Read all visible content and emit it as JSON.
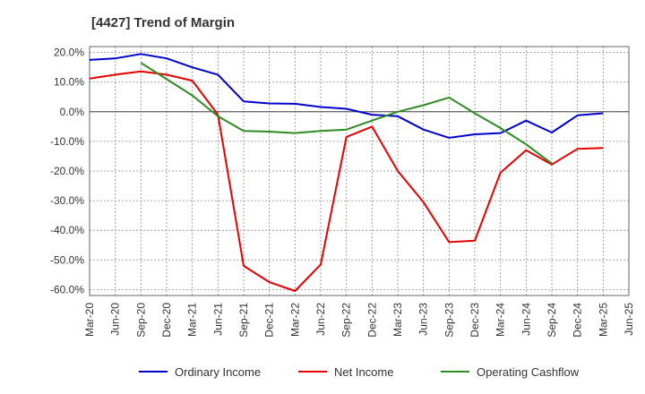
{
  "chart_data": {
    "type": "line",
    "title": "[4427]  Trend of Margin",
    "xlabel": "",
    "ylabel": "",
    "ylim": [
      -62,
      22
    ],
    "yticks": [
      20,
      10,
      0,
      -10,
      -20,
      -30,
      -40,
      -50,
      -60
    ],
    "ytick_labels": [
      "20.0%",
      "10.0%",
      "0.0%",
      "-10.0%",
      "-20.0%",
      "-30.0%",
      "-40.0%",
      "-50.0%",
      "-60.0%"
    ],
    "categories": [
      "Mar-20",
      "Jun-20",
      "Sep-20",
      "Dec-20",
      "Mar-21",
      "Jun-21",
      "Sep-21",
      "Dec-21",
      "Mar-22",
      "Jun-22",
      "Sep-22",
      "Dec-22",
      "Mar-23",
      "Jun-23",
      "Sep-23",
      "Dec-23",
      "Mar-24",
      "Jun-24",
      "Sep-24",
      "Dec-24",
      "Mar-25",
      "Jun-25"
    ],
    "grid": true,
    "legend_position": "bottom",
    "series": [
      {
        "name": "Ordinary Income",
        "color": "#0000cc",
        "values": [
          17.5,
          18.0,
          19.5,
          18.0,
          15.0,
          12.5,
          3.5,
          2.8,
          2.7,
          1.6,
          1.0,
          -1.0,
          -1.5,
          -6.0,
          -8.8,
          -7.6,
          -7.2,
          -3.0,
          -7.0,
          -1.2,
          -0.5,
          null
        ]
      },
      {
        "name": "Net Income",
        "color": "#e60000",
        "values": [
          11.2,
          12.5,
          13.6,
          12.5,
          10.5,
          -1.0,
          -52.0,
          -57.5,
          -60.5,
          -51.5,
          -8.5,
          -5.0,
          -20.0,
          -30.5,
          -44.0,
          -43.5,
          -20.5,
          -13.0,
          -17.8,
          -12.5,
          -12.2,
          null
        ]
      },
      {
        "name": "Operating Cashflow",
        "color": "#2e8b22",
        "values": [
          null,
          null,
          16.5,
          11.0,
          5.5,
          -1.5,
          -6.5,
          -6.7,
          -7.2,
          -6.5,
          -6.0,
          -3.0,
          0.0,
          2.2,
          4.8,
          -0.5,
          -5.5,
          -11.0,
          -17.5,
          null,
          null,
          null
        ]
      }
    ]
  }
}
